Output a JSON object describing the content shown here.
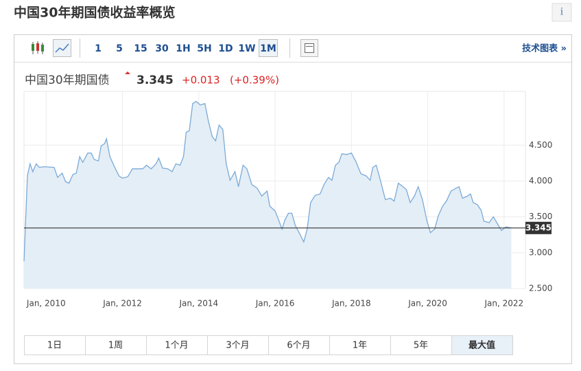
{
  "header": {
    "title": "中国30年期国债收益率概览",
    "info": "i"
  },
  "toolbar": {
    "intervals": [
      "1",
      "5",
      "15",
      "30",
      "1H",
      "5H",
      "1D",
      "1W",
      "1M"
    ],
    "active_interval": "1M",
    "link": "技术图表 »"
  },
  "quote": {
    "name": "中国30年期国债",
    "change": "+0.013",
    "change_percent": "(+0.39%)"
  },
  "chart_data": {
    "type": "line",
    "color": "#7aaad8",
    "fill": "#e4eef6",
    "x": [
      2009.42,
      2009.51,
      2009.58,
      2009.65,
      2009.74,
      2009.82,
      2009.95,
      2010.21,
      2010.3,
      2010.42,
      2010.51,
      2010.6,
      2010.7,
      2010.79,
      2010.88,
      2010.96,
      2011.09,
      2011.18,
      2011.26,
      2011.37,
      2011.44,
      2011.53,
      2011.58,
      2011.67,
      2011.79,
      2011.91,
      2012.0,
      2012.14,
      2012.26,
      2012.39,
      2012.53,
      2012.63,
      2012.75,
      2012.88,
      2012.95,
      2013.05,
      2013.19,
      2013.3,
      2013.4,
      2013.51,
      2013.6,
      2013.67,
      2013.75,
      2013.84,
      2013.93,
      2014.04,
      2014.16,
      2014.25,
      2014.35,
      2014.44,
      2014.53,
      2014.63,
      2014.72,
      2014.82,
      2014.95,
      2015.04,
      2015.16,
      2015.26,
      2015.39,
      2015.53,
      2015.65,
      2015.79,
      2015.86,
      2016.0,
      2016.09,
      2016.18,
      2016.26,
      2016.35,
      2016.44,
      2016.53,
      2016.65,
      2016.75,
      2016.84,
      2016.93,
      2017.05,
      2017.18,
      2017.28,
      2017.4,
      2017.49,
      2017.58,
      2017.67,
      2017.75,
      2017.88,
      2018.0,
      2018.11,
      2018.25,
      2018.39,
      2018.49,
      2018.56,
      2018.65,
      2018.75,
      2018.89,
      2019.02,
      2019.12,
      2019.23,
      2019.33,
      2019.44,
      2019.54,
      2019.65,
      2019.75,
      2019.86,
      2019.98,
      2020.07,
      2020.18,
      2020.28,
      2020.39,
      2020.49,
      2020.61,
      2020.74,
      2020.82,
      2020.91,
      2021.04,
      2021.12,
      2021.19,
      2021.3,
      2021.4,
      2021.47,
      2021.61,
      2021.72,
      2021.82,
      2021.93,
      2022.05,
      2022.19
    ],
    "values": [
      2.88,
      4.08,
      4.24,
      4.13,
      4.24,
      4.19,
      4.2,
      4.19,
      4.05,
      4.11,
      3.99,
      3.97,
      4.09,
      4.11,
      4.34,
      4.26,
      4.39,
      4.39,
      4.3,
      4.28,
      4.49,
      4.52,
      4.59,
      4.34,
      4.2,
      4.07,
      4.04,
      4.06,
      4.17,
      4.17,
      4.17,
      4.22,
      4.17,
      4.24,
      4.32,
      4.18,
      4.17,
      4.13,
      4.24,
      4.22,
      4.34,
      4.68,
      4.7,
      5.08,
      5.11,
      5.06,
      5.08,
      4.84,
      4.62,
      4.56,
      4.78,
      4.72,
      4.24,
      4.01,
      4.13,
      3.92,
      4.22,
      4.17,
      3.95,
      3.9,
      3.79,
      3.86,
      3.65,
      3.58,
      3.46,
      3.33,
      3.46,
      3.55,
      3.55,
      3.38,
      3.26,
      3.15,
      3.33,
      3.7,
      3.8,
      3.82,
      3.95,
      4.05,
      4.01,
      4.22,
      4.26,
      4.38,
      4.37,
      4.39,
      4.28,
      4.1,
      4.07,
      4.01,
      4.19,
      4.22,
      4.03,
      3.74,
      3.76,
      3.72,
      3.97,
      3.93,
      3.88,
      3.7,
      3.79,
      3.92,
      3.74,
      3.44,
      3.28,
      3.33,
      3.52,
      3.65,
      3.72,
      3.86,
      3.9,
      3.92,
      3.76,
      3.79,
      3.82,
      3.7,
      3.67,
      3.59,
      3.44,
      3.42,
      3.5,
      3.41,
      3.31,
      3.36,
      3.345
    ],
    "xlim": [
      2009.42,
      2022.56
    ],
    "xticks": [
      {
        "value": 2010,
        "label": "Jan, 2010"
      },
      {
        "value": 2012,
        "label": "Jan, 2012"
      },
      {
        "value": 2014,
        "label": "Jan, 2014"
      },
      {
        "value": 2016,
        "label": "Jan, 2016"
      },
      {
        "value": 2018,
        "label": "Jan, 2018"
      },
      {
        "value": 2020,
        "label": "Jan, 2020"
      },
      {
        "value": 2022,
        "label": "Jan, 2022"
      }
    ],
    "ylim": [
      2.5,
      5.25
    ],
    "yticks": [
      {
        "value": 2.5,
        "label": "2.500"
      },
      {
        "value": 3,
        "label": "3.000"
      },
      {
        "value": 3.5,
        "label": "3.500"
      },
      {
        "value": 4,
        "label": "4.000"
      },
      {
        "value": 4.5,
        "label": "4.500"
      }
    ],
    "last_value": 3.345
  },
  "ranges": [
    "1日",
    "1周",
    "1个月",
    "3个月",
    "6个月",
    "1年",
    "5年",
    "最大值"
  ],
  "active_range": "最大值"
}
